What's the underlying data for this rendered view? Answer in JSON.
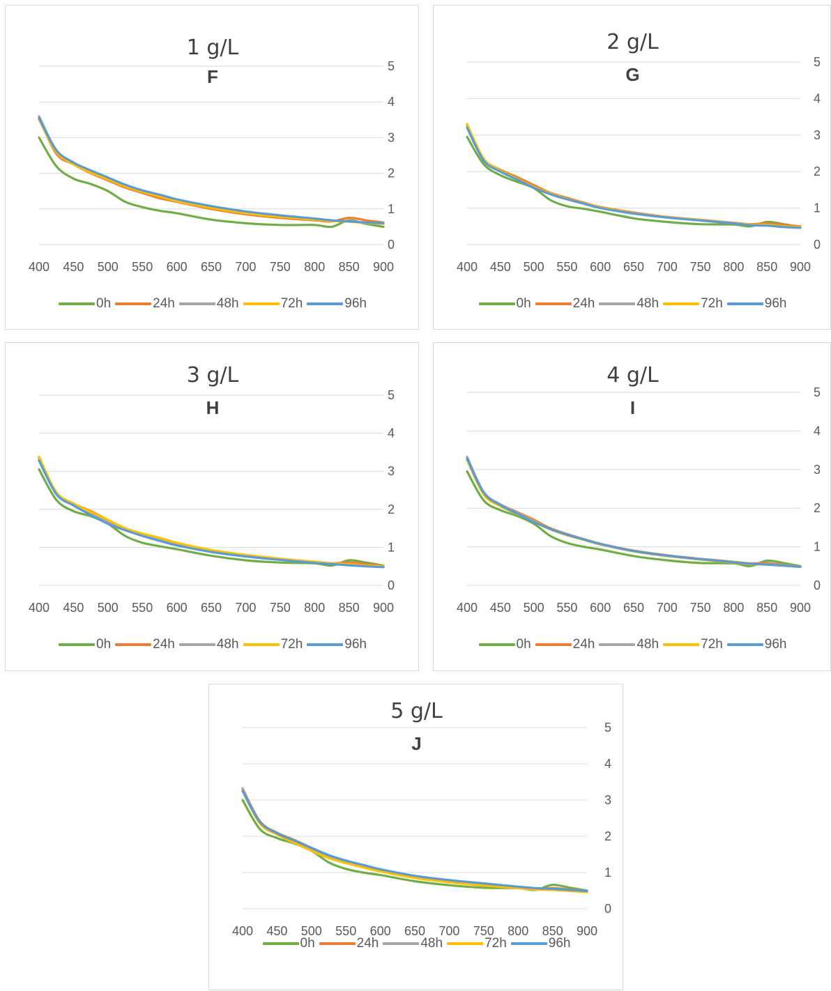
{
  "legend": [
    {
      "name": "0h",
      "color": "#70AD47"
    },
    {
      "name": "24h",
      "color": "#ED7D31"
    },
    {
      "name": "48h",
      "color": "#A5A5A5"
    },
    {
      "name": "72h",
      "color": "#FFC000"
    },
    {
      "name": "96h",
      "color": "#5B9BD5"
    }
  ],
  "chart_data": [
    {
      "type": "line",
      "title": "1 g/L",
      "subtitle": "F",
      "xlabel": "",
      "ylabel": "",
      "x": [
        400,
        425,
        450,
        475,
        500,
        525,
        550,
        575,
        600,
        650,
        700,
        750,
        800,
        825,
        850,
        875,
        900
      ],
      "xticks": [
        400,
        450,
        500,
        550,
        600,
        650,
        700,
        750,
        800,
        850,
        900
      ],
      "yticks": [
        0,
        1,
        2,
        3,
        4,
        5
      ],
      "xlim": [
        400,
        900
      ],
      "ylim": [
        0,
        5
      ],
      "grid": true,
      "y_axis_side": "right",
      "legend_position": "bottom",
      "series": [
        {
          "name": "0h",
          "color": "#70AD47",
          "values": [
            3.0,
            2.2,
            1.85,
            1.7,
            1.5,
            1.2,
            1.05,
            0.95,
            0.88,
            0.7,
            0.6,
            0.55,
            0.55,
            0.5,
            0.68,
            0.58,
            0.5
          ]
        },
        {
          "name": "24h",
          "color": "#ED7D31",
          "values": [
            3.55,
            2.55,
            2.25,
            2.0,
            1.8,
            1.6,
            1.45,
            1.3,
            1.2,
            1.0,
            0.85,
            0.75,
            0.68,
            0.65,
            0.75,
            0.68,
            0.62
          ]
        },
        {
          "name": "48h",
          "color": "#A5A5A5",
          "values": [
            3.6,
            2.65,
            2.3,
            2.05,
            1.85,
            1.65,
            1.5,
            1.38,
            1.25,
            1.05,
            0.9,
            0.8,
            0.72,
            0.68,
            0.65,
            0.62,
            0.6
          ]
        },
        {
          "name": "72h",
          "color": "#FFC000",
          "values": [
            3.5,
            2.6,
            2.25,
            2.02,
            1.83,
            1.63,
            1.48,
            1.35,
            1.22,
            1.03,
            0.88,
            0.78,
            0.7,
            0.66,
            0.64,
            0.61,
            0.58
          ]
        },
        {
          "name": "96h",
          "color": "#5B9BD5",
          "values": [
            3.55,
            2.65,
            2.3,
            2.08,
            1.88,
            1.68,
            1.52,
            1.4,
            1.27,
            1.08,
            0.93,
            0.82,
            0.73,
            0.68,
            0.65,
            0.62,
            0.6
          ]
        }
      ]
    },
    {
      "type": "line",
      "title": "2 g/L",
      "subtitle": "G",
      "xlabel": "",
      "ylabel": "",
      "x": [
        400,
        425,
        450,
        475,
        500,
        525,
        550,
        575,
        600,
        650,
        700,
        750,
        800,
        825,
        850,
        875,
        900
      ],
      "xticks": [
        400,
        450,
        500,
        550,
        600,
        650,
        700,
        750,
        800,
        850,
        900
      ],
      "yticks": [
        0,
        1,
        2,
        3,
        4,
        5
      ],
      "xlim": [
        400,
        900
      ],
      "ylim": [
        0,
        5
      ],
      "grid": true,
      "y_axis_side": "right",
      "legend_position": "bottom",
      "series": [
        {
          "name": "0h",
          "color": "#70AD47",
          "values": [
            2.95,
            2.2,
            1.9,
            1.72,
            1.55,
            1.22,
            1.05,
            0.98,
            0.9,
            0.72,
            0.62,
            0.56,
            0.55,
            0.5,
            0.62,
            0.56,
            0.48
          ]
        },
        {
          "name": "24h",
          "color": "#ED7D31",
          "values": [
            3.28,
            2.35,
            2.05,
            1.85,
            1.63,
            1.42,
            1.28,
            1.15,
            1.03,
            0.88,
            0.76,
            0.68,
            0.6,
            0.56,
            0.58,
            0.54,
            0.5
          ]
        },
        {
          "name": "48h",
          "color": "#A5A5A5",
          "values": [
            3.25,
            2.32,
            2.02,
            1.8,
            1.58,
            1.4,
            1.25,
            1.13,
            1.02,
            0.86,
            0.75,
            0.67,
            0.59,
            0.55,
            0.54,
            0.5,
            0.48
          ]
        },
        {
          "name": "72h",
          "color": "#FFC000",
          "values": [
            3.3,
            2.35,
            2.03,
            1.8,
            1.58,
            1.4,
            1.25,
            1.13,
            1.02,
            0.86,
            0.75,
            0.67,
            0.59,
            0.55,
            0.54,
            0.5,
            0.48
          ]
        },
        {
          "name": "96h",
          "color": "#5B9BD5",
          "values": [
            3.2,
            2.3,
            2.0,
            1.78,
            1.56,
            1.38,
            1.24,
            1.12,
            1.0,
            0.85,
            0.74,
            0.66,
            0.58,
            0.53,
            0.52,
            0.48,
            0.46
          ]
        }
      ]
    },
    {
      "type": "line",
      "title": "3 g/L",
      "subtitle": "H",
      "xlabel": "",
      "ylabel": "",
      "x": [
        400,
        425,
        450,
        475,
        500,
        525,
        550,
        575,
        600,
        650,
        700,
        750,
        800,
        825,
        850,
        875,
        900
      ],
      "xticks": [
        400,
        450,
        500,
        550,
        600,
        650,
        700,
        750,
        800,
        850,
        900
      ],
      "yticks": [
        0,
        1,
        2,
        3,
        4,
        5
      ],
      "xlim": [
        400,
        900
      ],
      "ylim": [
        0,
        5
      ],
      "grid": true,
      "y_axis_side": "right",
      "legend_position": "bottom",
      "series": [
        {
          "name": "0h",
          "color": "#70AD47",
          "values": [
            3.05,
            2.25,
            1.95,
            1.82,
            1.62,
            1.3,
            1.12,
            1.03,
            0.95,
            0.78,
            0.66,
            0.6,
            0.58,
            0.52,
            0.66,
            0.6,
            0.52
          ]
        },
        {
          "name": "24h",
          "color": "#ED7D31",
          "values": [
            3.35,
            2.45,
            2.15,
            1.95,
            1.72,
            1.5,
            1.35,
            1.22,
            1.1,
            0.92,
            0.8,
            0.7,
            0.62,
            0.58,
            0.6,
            0.56,
            0.5
          ]
        },
        {
          "name": "48h",
          "color": "#A5A5A5",
          "values": [
            3.32,
            2.42,
            2.12,
            1.9,
            1.68,
            1.48,
            1.32,
            1.2,
            1.08,
            0.9,
            0.78,
            0.68,
            0.6,
            0.56,
            0.55,
            0.52,
            0.49
          ]
        },
        {
          "name": "72h",
          "color": "#FFC000",
          "values": [
            3.38,
            2.45,
            2.15,
            1.93,
            1.72,
            1.5,
            1.36,
            1.25,
            1.12,
            0.93,
            0.8,
            0.7,
            0.62,
            0.58,
            0.56,
            0.52,
            0.5
          ]
        },
        {
          "name": "96h",
          "color": "#5B9BD5",
          "values": [
            3.28,
            2.4,
            2.1,
            1.85,
            1.62,
            1.45,
            1.3,
            1.17,
            1.05,
            0.88,
            0.76,
            0.67,
            0.59,
            0.56,
            0.53,
            0.5,
            0.48
          ]
        }
      ]
    },
    {
      "type": "line",
      "title": "4 g/L",
      "subtitle": "I",
      "xlabel": "",
      "ylabel": "",
      "x": [
        400,
        425,
        450,
        475,
        500,
        525,
        550,
        575,
        600,
        650,
        700,
        750,
        800,
        825,
        850,
        875,
        900
      ],
      "xticks": [
        400,
        450,
        500,
        550,
        600,
        650,
        700,
        750,
        800,
        850,
        900
      ],
      "yticks": [
        0,
        1,
        2,
        3,
        4,
        5
      ],
      "xlim": [
        400,
        900
      ],
      "ylim": [
        0,
        5
      ],
      "grid": true,
      "y_axis_side": "right",
      "legend_position": "bottom",
      "series": [
        {
          "name": "0h",
          "color": "#70AD47",
          "values": [
            2.95,
            2.2,
            1.95,
            1.8,
            1.6,
            1.28,
            1.1,
            1.0,
            0.93,
            0.76,
            0.65,
            0.58,
            0.57,
            0.5,
            0.64,
            0.58,
            0.5
          ]
        },
        {
          "name": "24h",
          "color": "#ED7D31",
          "values": [
            3.3,
            2.4,
            2.1,
            1.9,
            1.7,
            1.48,
            1.33,
            1.2,
            1.08,
            0.9,
            0.78,
            0.69,
            0.61,
            0.57,
            0.58,
            0.53,
            0.49
          ]
        },
        {
          "name": "48h",
          "color": "#A5A5A5",
          "values": [
            3.33,
            2.42,
            2.1,
            1.88,
            1.66,
            1.46,
            1.32,
            1.19,
            1.07,
            0.89,
            0.77,
            0.68,
            0.6,
            0.56,
            0.55,
            0.52,
            0.49
          ]
        },
        {
          "name": "72h",
          "color": "#FFC000",
          "values": [
            3.25,
            2.35,
            2.05,
            1.85,
            1.65,
            1.45,
            1.3,
            1.18,
            1.06,
            0.88,
            0.76,
            0.67,
            0.59,
            0.55,
            0.54,
            0.51,
            0.48
          ]
        },
        {
          "name": "96h",
          "color": "#5B9BD5",
          "values": [
            3.28,
            2.4,
            2.08,
            1.86,
            1.64,
            1.46,
            1.31,
            1.19,
            1.07,
            0.89,
            0.77,
            0.68,
            0.6,
            0.56,
            0.54,
            0.51,
            0.48
          ]
        }
      ]
    },
    {
      "type": "line",
      "title": "5 g/L",
      "subtitle": "J",
      "xlabel": "",
      "ylabel": "",
      "x": [
        400,
        425,
        450,
        475,
        500,
        525,
        550,
        575,
        600,
        650,
        700,
        750,
        800,
        825,
        850,
        875,
        900
      ],
      "xticks": [
        400,
        450,
        500,
        550,
        600,
        650,
        700,
        750,
        800,
        850,
        900
      ],
      "yticks": [
        0,
        1,
        2,
        3,
        4,
        5
      ],
      "xlim": [
        400,
        900
      ],
      "ylim": [
        0,
        5
      ],
      "grid": true,
      "y_axis_side": "right",
      "legend_position": "bottom",
      "series": [
        {
          "name": "0h",
          "color": "#70AD47",
          "values": [
            3.0,
            2.2,
            1.95,
            1.8,
            1.6,
            1.28,
            1.1,
            1.0,
            0.93,
            0.76,
            0.65,
            0.58,
            0.57,
            0.52,
            0.66,
            0.58,
            0.5
          ]
        },
        {
          "name": "24h",
          "color": "#ED7D31",
          "values": [
            3.32,
            2.42,
            2.1,
            1.9,
            1.68,
            1.47,
            1.32,
            1.2,
            1.08,
            0.9,
            0.78,
            0.68,
            0.6,
            0.56,
            0.57,
            0.53,
            0.49
          ]
        },
        {
          "name": "48h",
          "color": "#A5A5A5",
          "values": [
            3.3,
            2.4,
            2.08,
            1.88,
            1.66,
            1.46,
            1.31,
            1.19,
            1.07,
            0.89,
            0.77,
            0.67,
            0.59,
            0.55,
            0.54,
            0.51,
            0.48
          ]
        },
        {
          "name": "72h",
          "color": "#FFC000",
          "values": [
            3.25,
            2.35,
            2.05,
            1.82,
            1.6,
            1.4,
            1.26,
            1.14,
            1.03,
            0.85,
            0.73,
            0.64,
            0.57,
            0.53,
            0.52,
            0.49,
            0.46
          ]
        },
        {
          "name": "96h",
          "color": "#5B9BD5",
          "values": [
            3.25,
            2.4,
            2.08,
            1.88,
            1.68,
            1.48,
            1.33,
            1.21,
            1.09,
            0.91,
            0.79,
            0.7,
            0.61,
            0.57,
            0.55,
            0.52,
            0.49
          ]
        }
      ]
    }
  ]
}
